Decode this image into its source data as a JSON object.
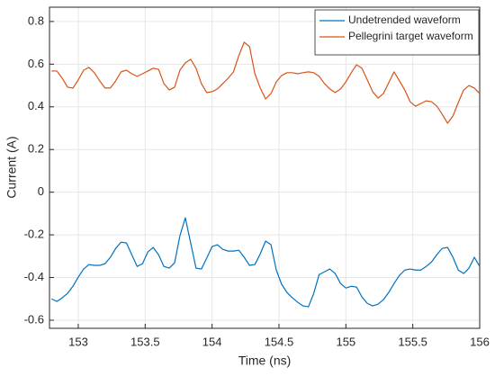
{
  "chart_data": {
    "type": "line",
    "xlabel": "Time (ns)",
    "ylabel": "Current (A)",
    "x": [
      152.8,
      152.84,
      152.88,
      152.92,
      152.96,
      153,
      153.04,
      153.08,
      153.12,
      153.16,
      153.2,
      153.24,
      153.28,
      153.32,
      153.36,
      153.4,
      153.44,
      153.48,
      153.52,
      153.56,
      153.6,
      153.64,
      153.68,
      153.72,
      153.76,
      153.8,
      153.84,
      153.88,
      153.92,
      153.96,
      154,
      154.04,
      154.08,
      154.12,
      154.16,
      154.2,
      154.24,
      154.28,
      154.32,
      154.36,
      154.4,
      154.44,
      154.48,
      154.52,
      154.56,
      154.6,
      154.64,
      154.68,
      154.72,
      154.76,
      154.8,
      154.84,
      154.88,
      154.92,
      154.96,
      155,
      155.04,
      155.08,
      155.12,
      155.16,
      155.2,
      155.24,
      155.28,
      155.32,
      155.36,
      155.4,
      155.44,
      155.48,
      155.52,
      155.56,
      155.6,
      155.64,
      155.68,
      155.72,
      155.76,
      155.8,
      155.84,
      155.88,
      155.92,
      155.96,
      156
    ],
    "series": [
      {
        "name": "Undetrended waveform",
        "color": "#0072bd",
        "values": [
          -0.5,
          -0.512,
          -0.495,
          -0.474,
          -0.441,
          -0.398,
          -0.36,
          -0.339,
          -0.343,
          -0.343,
          -0.335,
          -0.305,
          -0.263,
          -0.234,
          -0.238,
          -0.293,
          -0.348,
          -0.335,
          -0.28,
          -0.259,
          -0.293,
          -0.348,
          -0.356,
          -0.331,
          -0.204,
          -0.12,
          -0.238,
          -0.356,
          -0.36,
          -0.309,
          -0.255,
          -0.246,
          -0.268,
          -0.276,
          -0.276,
          -0.272,
          -0.305,
          -0.343,
          -0.339,
          -0.289,
          -0.229,
          -0.246,
          -0.365,
          -0.432,
          -0.47,
          -0.495,
          -0.516,
          -0.533,
          -0.537,
          -0.474,
          -0.386,
          -0.373,
          -0.36,
          -0.381,
          -0.428,
          -0.449,
          -0.441,
          -0.445,
          -0.491,
          -0.521,
          -0.533,
          -0.525,
          -0.504,
          -0.47,
          -0.428,
          -0.39,
          -0.365,
          -0.36,
          -0.365,
          -0.365,
          -0.348,
          -0.327,
          -0.293,
          -0.263,
          -0.259,
          -0.305,
          -0.365,
          -0.381,
          -0.356,
          -0.305,
          -0.348
        ]
      },
      {
        "name": "Pellegrini target waveform",
        "color": "#d95319",
        "values": [
          0.568,
          0.568,
          0.534,
          0.492,
          0.488,
          0.526,
          0.572,
          0.585,
          0.56,
          0.522,
          0.488,
          0.488,
          0.522,
          0.564,
          0.572,
          0.555,
          0.543,
          0.555,
          0.568,
          0.581,
          0.576,
          0.509,
          0.479,
          0.492,
          0.572,
          0.606,
          0.623,
          0.581,
          0.509,
          0.467,
          0.471,
          0.484,
          0.509,
          0.534,
          0.564,
          0.64,
          0.703,
          0.682,
          0.555,
          0.488,
          0.437,
          0.462,
          0.517,
          0.547,
          0.56,
          0.56,
          0.555,
          0.56,
          0.564,
          0.56,
          0.543,
          0.509,
          0.484,
          0.467,
          0.484,
          0.517,
          0.56,
          0.597,
          0.581,
          0.526,
          0.471,
          0.441,
          0.462,
          0.513,
          0.564,
          0.522,
          0.479,
          0.424,
          0.403,
          0.416,
          0.428,
          0.424,
          0.403,
          0.365,
          0.323,
          0.357,
          0.42,
          0.479,
          0.5,
          0.488,
          0.462
        ]
      }
    ],
    "xlim": [
      152.785,
      156
    ],
    "xticks": [
      153,
      153.5,
      154,
      154.5,
      155,
      155.5,
      156
    ],
    "ylim": [
      -0.638,
      0.867
    ],
    "yticks": [
      -0.6,
      -0.4,
      -0.2,
      0,
      0.2,
      0.4,
      0.6,
      0.8
    ],
    "grid": true,
    "legend": "northeast"
  }
}
